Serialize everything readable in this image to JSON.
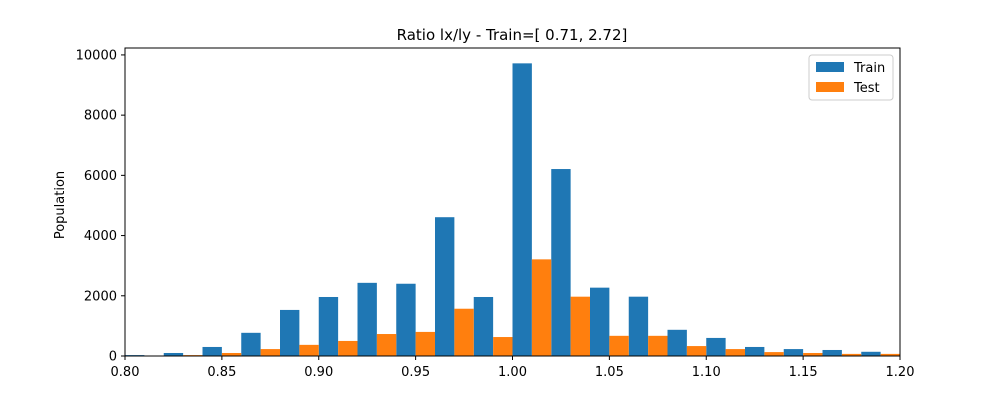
{
  "chart_data": {
    "type": "bar",
    "title": "Ratio lx/ly - Train=[ 0.71,  2.72]",
    "xlabel": "",
    "ylabel": "Population",
    "xlim": [
      0.8,
      1.2
    ],
    "ylim": [
      0,
      10230
    ],
    "xticks": [
      0.8,
      0.85,
      0.9,
      0.95,
      1.0,
      1.05,
      1.1,
      1.15,
      1.2
    ],
    "xtick_labels": [
      "0.80",
      "0.85",
      "0.90",
      "0.95",
      "1.00",
      "1.05",
      "1.10",
      "1.15",
      "1.20"
    ],
    "yticks": [
      0,
      2000,
      4000,
      6000,
      8000,
      10000
    ],
    "ytick_labels": [
      "0",
      "2000",
      "4000",
      "6000",
      "8000",
      "10000"
    ],
    "bin_edges": [
      0.8,
      0.82,
      0.84,
      0.86,
      0.88,
      0.9,
      0.92,
      0.94,
      0.96,
      0.98,
      1.0,
      1.02,
      1.04,
      1.06,
      1.08,
      1.1,
      1.12,
      1.14,
      1.16,
      1.18,
      1.2
    ],
    "series": [
      {
        "name": "Train",
        "color": "#1f77b4",
        "values": [
          30,
          100,
          300,
          770,
          1530,
          1960,
          2430,
          2400,
          4610,
          1960,
          9720,
          6210,
          2270,
          1970,
          870,
          600,
          300,
          230,
          200,
          140
        ]
      },
      {
        "name": "Test",
        "color": "#ff7f0e",
        "values": [
          0,
          30,
          100,
          230,
          370,
          500,
          730,
          800,
          1570,
          630,
          3210,
          1970,
          670,
          670,
          330,
          230,
          130,
          100,
          70,
          70
        ]
      }
    ],
    "grid": false,
    "legend_position": "top-right"
  }
}
